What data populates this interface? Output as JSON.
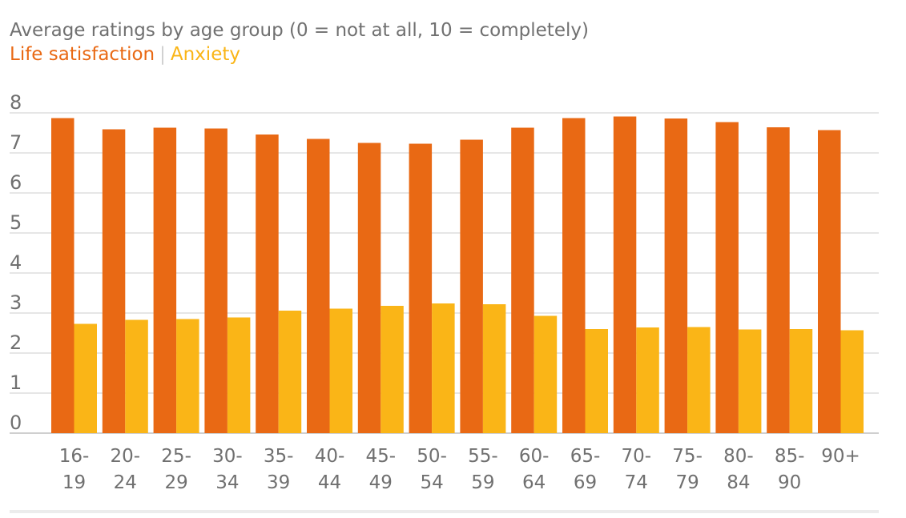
{
  "chart_data": {
    "type": "bar",
    "title": "",
    "subtitle": "Average ratings by age group (0 = not at all, 10 = completely)",
    "xlabel": "",
    "ylabel": "",
    "ylim": [
      0,
      8
    ],
    "yticks": [
      "0",
      "1",
      "2",
      "3",
      "4",
      "5",
      "6",
      "7",
      "8"
    ],
    "categories": [
      "16-19",
      "20-24",
      "25-29",
      "30-34",
      "35-39",
      "40-44",
      "45-49",
      "50-54",
      "55-59",
      "60-64",
      "65-69",
      "70-74",
      "75-79",
      "80-84",
      "85-90",
      "90+"
    ],
    "category_lines": [
      [
        "16-",
        "19"
      ],
      [
        "20-",
        "24"
      ],
      [
        "25-",
        "29"
      ],
      [
        "30-",
        "34"
      ],
      [
        "35-",
        "39"
      ],
      [
        "40-",
        "44"
      ],
      [
        "45-",
        "49"
      ],
      [
        "50-",
        "54"
      ],
      [
        "55-",
        "59"
      ],
      [
        "60-",
        "64"
      ],
      [
        "65-",
        "69"
      ],
      [
        "70-",
        "74"
      ],
      [
        "75-",
        "79"
      ],
      [
        "80-",
        "84"
      ],
      [
        "85-",
        "90"
      ],
      [
        "90+",
        ""
      ]
    ],
    "series": [
      {
        "name": "Life satisfaction",
        "color": "#e96914",
        "values": [
          7.87,
          7.59,
          7.63,
          7.61,
          7.46,
          7.35,
          7.25,
          7.23,
          7.33,
          7.63,
          7.87,
          7.91,
          7.86,
          7.77,
          7.64,
          7.57
        ]
      },
      {
        "name": "Anxiety",
        "color": "#fab517",
        "values": [
          2.73,
          2.83,
          2.85,
          2.89,
          3.06,
          3.11,
          3.18,
          3.24,
          3.22,
          2.93,
          2.6,
          2.64,
          2.65,
          2.59,
          2.6,
          2.57
        ]
      }
    ],
    "legend_separator": "|"
  }
}
